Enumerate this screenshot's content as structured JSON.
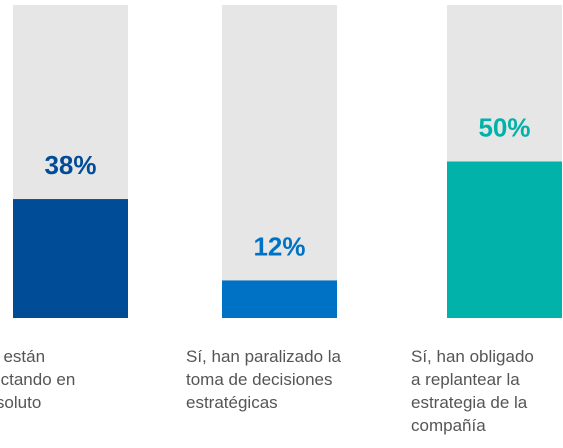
{
  "chart_data": {
    "type": "bar",
    "categories": [
      [
        "No están",
        "afectando en",
        "absoluto"
      ],
      [
        "Sí, han paralizado la",
        "toma de decisiones",
        "estratégicas"
      ],
      [
        "Sí, han obligado",
        "a replantear la",
        "estrategia de la",
        "compañía"
      ]
    ],
    "values": [
      38,
      12,
      50
    ],
    "value_labels": [
      "38%",
      "12%",
      "50%"
    ],
    "colors": [
      "#004c97",
      "#0072c6",
      "#00b2a9"
    ],
    "background_color": "#e6e6e6",
    "ylim": [
      0,
      100
    ]
  }
}
